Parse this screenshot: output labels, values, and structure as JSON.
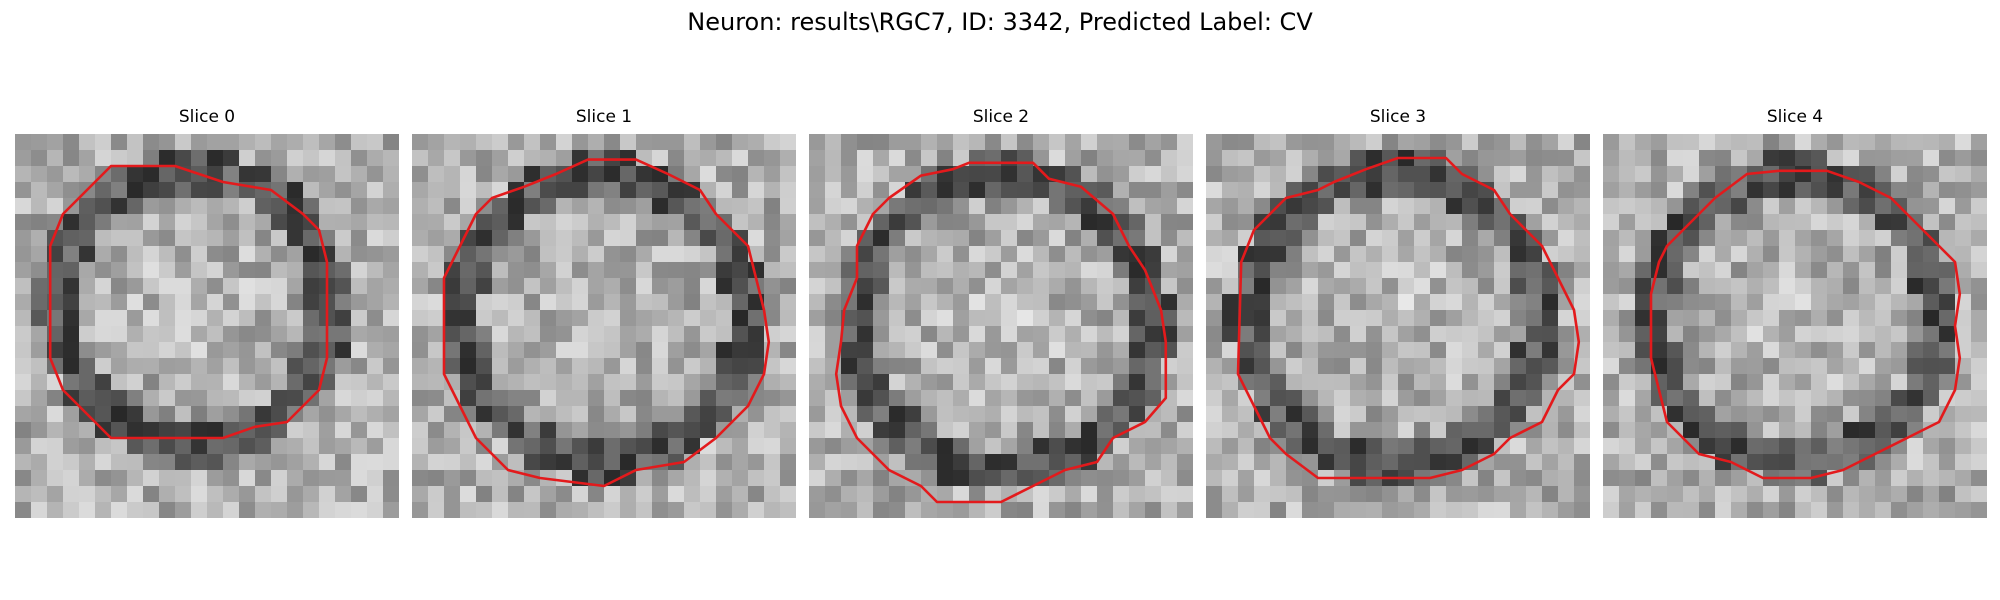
{
  "figure": {
    "title": "Neuron: results\\RGC7, ID: 3342, Predicted Label: CV"
  },
  "slices": [
    {
      "title": "Slice 0"
    },
    {
      "title": "Slice 1"
    },
    {
      "title": "Slice 2"
    },
    {
      "title": "Slice 3"
    },
    {
      "title": "Slice 4"
    }
  ],
  "colors": {
    "contour": "#e31a1c",
    "background": "#ffffff"
  }
}
